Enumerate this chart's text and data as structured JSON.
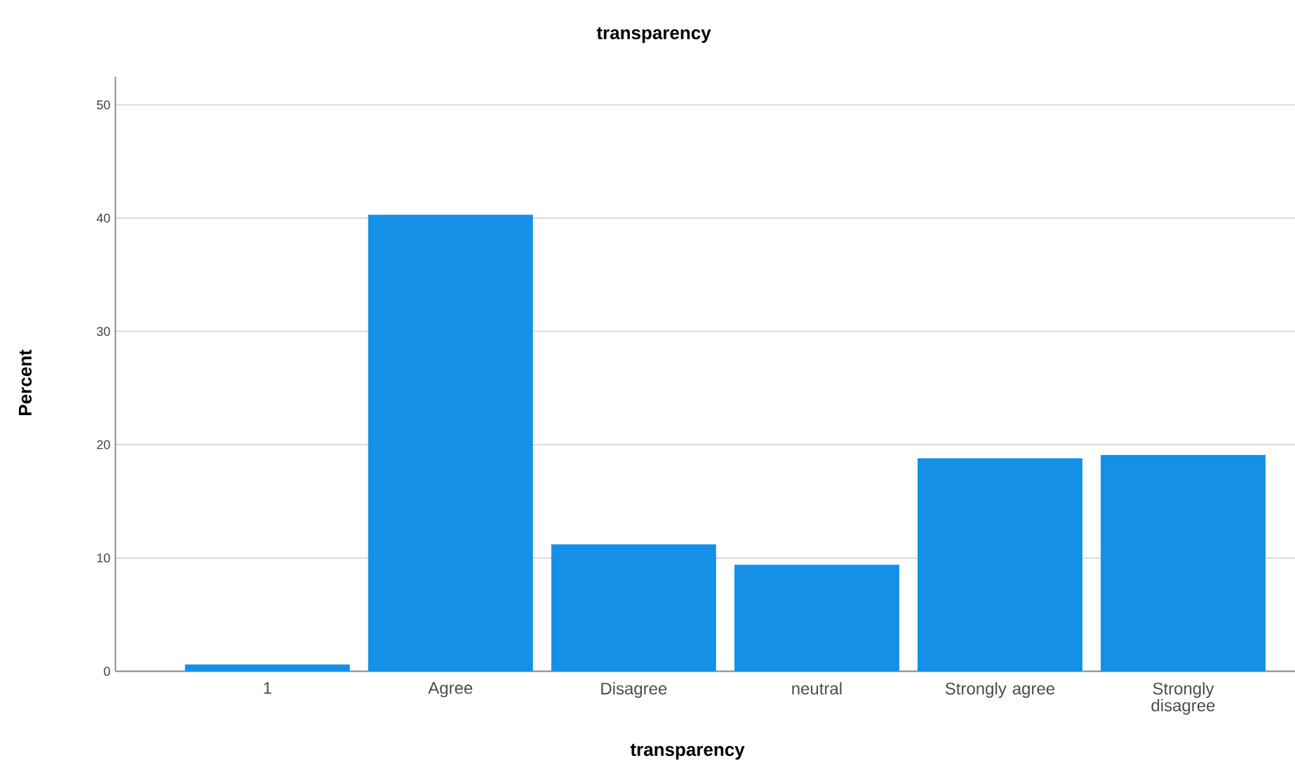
{
  "chart_data": {
    "type": "bar",
    "title": "transparency",
    "xlabel": "transparency",
    "ylabel": "Percent",
    "categories": [
      "1",
      "Agree",
      "Disagree",
      "neutral",
      "Strongly agree",
      "Strongly disagree"
    ],
    "values": [
      0.6,
      40.3,
      11.2,
      9.4,
      18.8,
      19.1
    ],
    "color": "#1490e6",
    "ylim": [
      0,
      52.5
    ],
    "yticks": [
      0,
      10,
      20,
      30,
      40,
      50
    ],
    "grid": "y"
  }
}
